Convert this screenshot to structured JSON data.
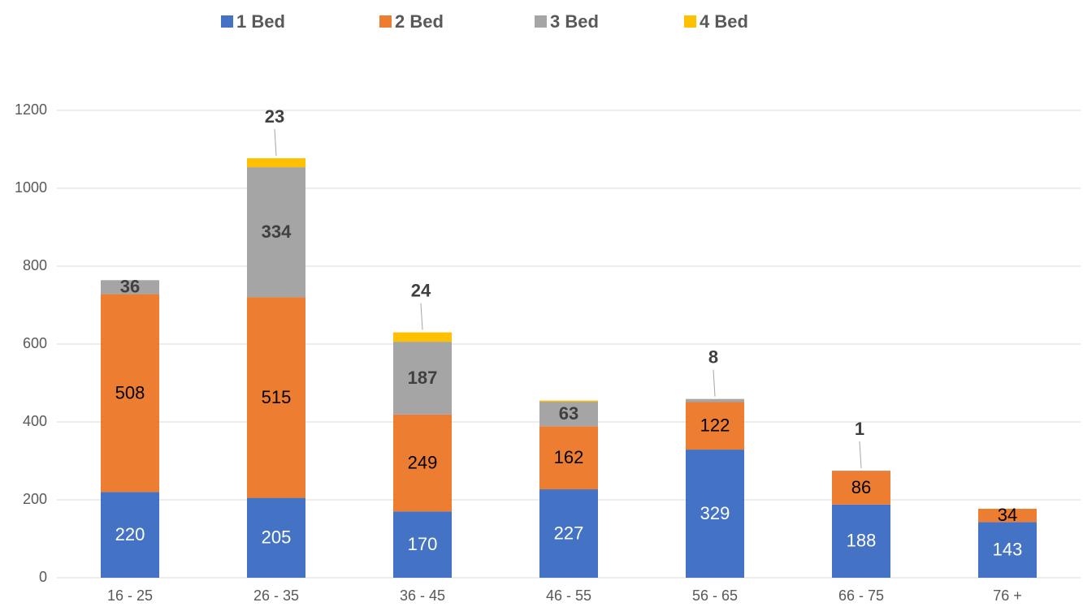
{
  "chart_data": {
    "type": "stacked_bar",
    "categories": [
      "16 - 25",
      "26 - 35",
      "36 - 45",
      "46 - 55",
      "56 - 65",
      "66 - 75",
      "76 +"
    ],
    "series": [
      {
        "name": "1 Bed",
        "color": "#4472c4",
        "values": [
          220,
          205,
          170,
          227,
          329,
          188,
          143
        ]
      },
      {
        "name": "2 Bed",
        "color": "#ed7d31",
        "values": [
          508,
          515,
          249,
          162,
          122,
          86,
          34
        ]
      },
      {
        "name": "3 Bed",
        "color": "#a5a5a5",
        "values": [
          36,
          334,
          187,
          63,
          8,
          1,
          null
        ]
      },
      {
        "name": "4 Bed",
        "color": "#ffc000",
        "values": [
          null,
          23,
          24,
          3,
          null,
          null,
          null
        ],
        "value_labels": [
          null,
          "23",
          "24",
          null,
          null,
          null,
          null
        ]
      }
    ],
    "ylim": [
      0,
      1200
    ],
    "yticks": [
      0,
      200,
      400,
      600,
      800,
      1000,
      1200
    ],
    "grid": true,
    "legend": "top"
  }
}
